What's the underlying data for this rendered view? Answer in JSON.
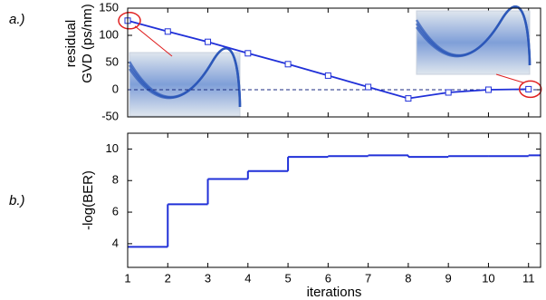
{
  "chart_data": [
    {
      "type": "line",
      "panel_label": "a.)",
      "ylabel": [
        "residual",
        "GVD (ps/nm)"
      ],
      "x": [
        1,
        2,
        3,
        4,
        5,
        6,
        7,
        8,
        9,
        10,
        11
      ],
      "xlim": [
        1,
        11.3
      ],
      "xticks": [
        1,
        2,
        3,
        4,
        5,
        6,
        7,
        8,
        9,
        10,
        11
      ],
      "ylim": [
        -50,
        150
      ],
      "yticks": [
        150,
        100,
        50,
        0,
        -50
      ],
      "reference_line": 0,
      "series": [
        {
          "color": "#2030d8",
          "values": [
            127,
            107,
            88,
            67,
            47,
            26,
            5,
            -16,
            -5,
            0,
            1
          ]
        }
      ]
    },
    {
      "type": "step",
      "panel_label": "b.)",
      "ylabel": [
        "-log(BER)"
      ],
      "xlabel": "iterations",
      "x": [
        1,
        2,
        3,
        4,
        5,
        6,
        7,
        8,
        9,
        10,
        11
      ],
      "xlim": [
        1,
        11.3
      ],
      "xticks": [
        1,
        2,
        3,
        4,
        5,
        6,
        7,
        8,
        9,
        10,
        11
      ],
      "ylim": [
        2.5,
        11
      ],
      "yticks": [
        10,
        8,
        6,
        4
      ],
      "series": [
        {
          "color": "#2030d8",
          "values": [
            3.8,
            6.5,
            8.1,
            8.6,
            9.5,
            9.55,
            9.6,
            9.5,
            9.55,
            9.55,
            9.6
          ]
        }
      ]
    }
  ]
}
